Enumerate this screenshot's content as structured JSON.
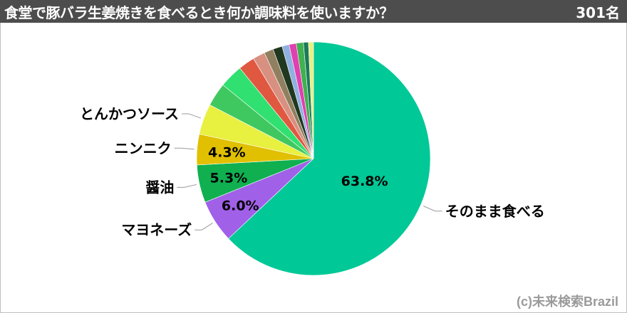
{
  "header": {
    "title": "食堂で豚バラ生姜焼きを食べるとき何か調味料を使いますか？",
    "count": "301名"
  },
  "credit": "(c)未来検索Brazil",
  "colors": {
    "header_bg": "#4d4d4d"
  },
  "chart_data": {
    "type": "pie",
    "title": "食堂で豚バラ生姜焼きを食べるとき何か調味料を使いますか？",
    "start": "12 o'clock, clockwise",
    "slices": [
      {
        "label": "そのまま食べる",
        "value": 63.8,
        "value_label": "63.8%",
        "color": "#00c896"
      },
      {
        "label": "マヨネーズ",
        "value": 6.0,
        "value_label": "6.0%",
        "color": "#a060e8"
      },
      {
        "label": "醤油",
        "value": 5.3,
        "value_label": "5.3%",
        "color": "#10b050"
      },
      {
        "label": "ニンニク",
        "value": 4.3,
        "value_label": "4.3%",
        "color": "#e0c000"
      },
      {
        "label": "とんかつソース",
        "value": 4.3,
        "value_label": "",
        "color": "#e8f040"
      },
      {
        "label": "",
        "value": 3.3,
        "value_label": "",
        "color": "#40c860"
      },
      {
        "label": "",
        "value": 3.3,
        "value_label": "",
        "color": "#30e070"
      },
      {
        "label": "",
        "value": 2.3,
        "value_label": "",
        "color": "#e05840"
      },
      {
        "label": "",
        "value": 1.7,
        "value_label": "",
        "color": "#d89080"
      },
      {
        "label": "",
        "value": 1.3,
        "value_label": "",
        "color": "#908060"
      },
      {
        "label": "",
        "value": 1.3,
        "value_label": "",
        "color": "#203820"
      },
      {
        "label": "",
        "value": 1.0,
        "value_label": "",
        "color": "#90b0e0"
      },
      {
        "label": "",
        "value": 1.0,
        "value_label": "",
        "color": "#e040b0"
      },
      {
        "label": "",
        "value": 1.0,
        "value_label": "",
        "color": "#40b050"
      },
      {
        "label": "",
        "value": 0.7,
        "value_label": "",
        "color": "#1a7a5a"
      },
      {
        "label": "",
        "value": 0.7,
        "value_label": "",
        "color": "#e8f080"
      }
    ]
  }
}
